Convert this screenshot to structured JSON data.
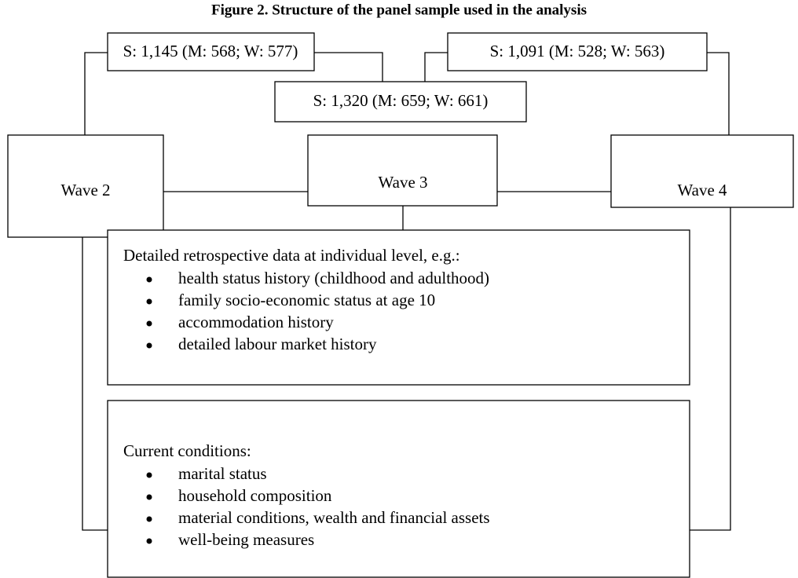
{
  "title": "Figure 2. Structure of the panel sample used in the analysis",
  "samples": [
    "S: 1,145 (M: 568; W: 577)",
    "S: 1,320 (M: 659; W: 661)",
    "S: 1,091 (M: 528; W: 563)"
  ],
  "waves": [
    "Wave 2",
    "Wave 3",
    "Wave 4"
  ],
  "retrospective": {
    "heading": "Detailed retrospective data at individual level, e.g.:",
    "items": [
      "health status history (childhood and adulthood)",
      "family socio-economic status at age 10",
      "accommodation history",
      "detailed labour market history"
    ]
  },
  "current": {
    "heading": "Current conditions:",
    "items": [
      "marital status",
      "household composition",
      "material conditions, wealth and financial assets",
      "well-being measures"
    ]
  }
}
